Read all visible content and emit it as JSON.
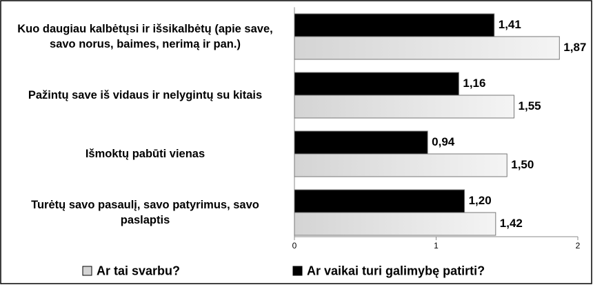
{
  "chart_data": {
    "type": "bar",
    "orientation": "horizontal",
    "categories": [
      "Kuo daugiau kalbėtųsi ir išsikalbėtų (apie save, savo norus, baimes, nerimą ir pan.)",
      "Pažintų save iš vidaus ir nelygintų su kitais",
      "Išmoktų pabūti vienas",
      "Turėtų savo pasaulį, savo patyrimus, savo paslaptis"
    ],
    "series": [
      {
        "name": "Ar tai svarbu?",
        "color": "#d4d4d4",
        "values": [
          1.87,
          1.55,
          1.5,
          1.42
        ],
        "value_labels": [
          "1,87",
          "1,55",
          "1,50",
          "1,42"
        ]
      },
      {
        "name": "Ar vaikai turi galimybę patirti?",
        "color": "#000000",
        "values": [
          1.41,
          1.16,
          0.94,
          1.2
        ],
        "value_labels": [
          "1,41",
          "1,16",
          "0,94",
          "1,20"
        ]
      }
    ],
    "xlim": [
      0,
      2
    ],
    "xticks": [
      0,
      1,
      2
    ],
    "legend": "bottom"
  }
}
